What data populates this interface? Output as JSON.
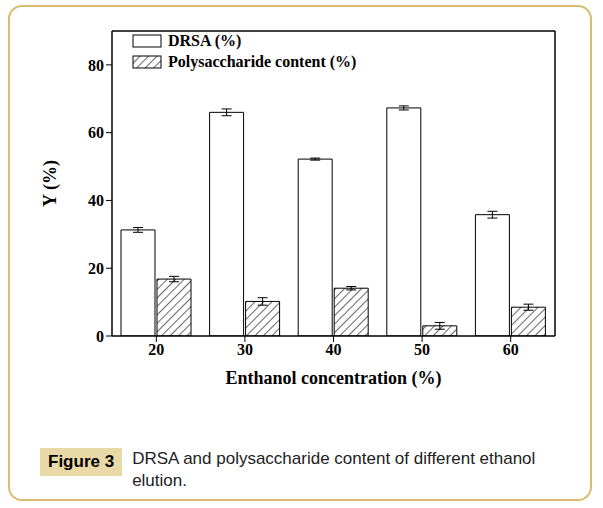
{
  "chart_data": {
    "type": "bar",
    "categories": [
      "20",
      "30",
      "40",
      "50",
      "60"
    ],
    "series": [
      {
        "name": "DRSA (%)",
        "color": "#ffffff",
        "values": [
          31.3,
          66.0,
          52.2,
          67.3,
          35.8
        ],
        "errors": [
          0.7,
          1.0,
          0.3,
          0.6,
          1.0
        ]
      },
      {
        "name": "Polysaccharide content (%)",
        "color": "#ffffff",
        "marker": "hatch",
        "values": [
          16.8,
          10.2,
          14.1,
          3.0,
          8.5
        ],
        "errors": [
          0.8,
          1.1,
          0.5,
          1.0,
          0.9
        ]
      }
    ],
    "x_label": "Enthanol concentration (%)",
    "y_label": "Y (%)",
    "ylim": [
      0,
      90
    ],
    "yticks": [
      0,
      20,
      40,
      60,
      80
    ],
    "grid": false,
    "legend": "upper left",
    "caption": {
      "label": "Figure 3",
      "text": "DRSA and polysaccharide content of different ethanol elution."
    }
  }
}
